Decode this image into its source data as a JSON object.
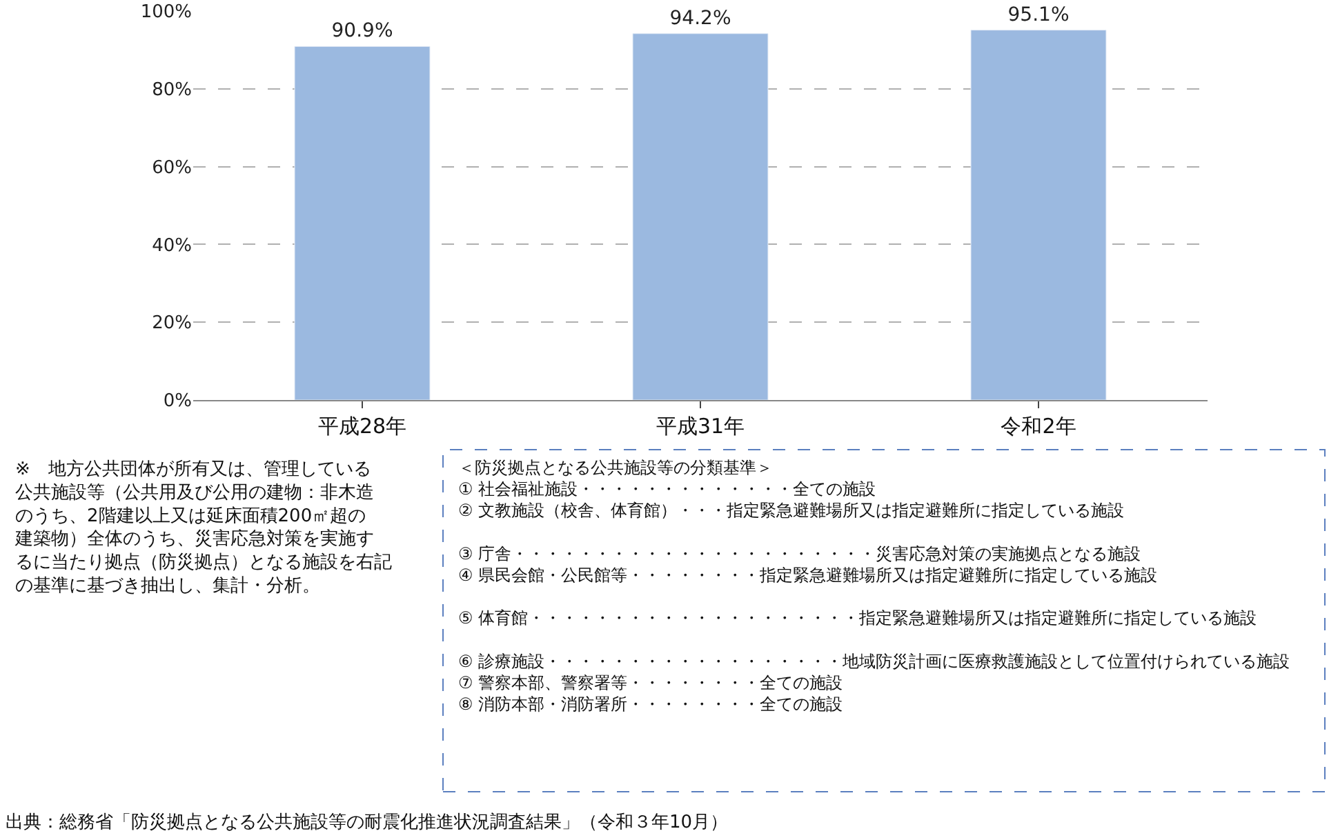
{
  "chart_data": {
    "type": "bar",
    "categories": [
      "平成28年",
      "平成31年",
      "令和2年"
    ],
    "values": [
      90.9,
      94.2,
      95.1
    ],
    "value_labels": [
      "90.9%",
      "94.2%",
      "95.1%"
    ],
    "color": "#9bb9e0",
    "ylim": [
      0,
      100
    ],
    "yticks": [
      {
        "value": 0,
        "label": "0%"
      },
      {
        "value": 20,
        "label": "20%"
      },
      {
        "value": 40,
        "label": "40%"
      },
      {
        "value": 60,
        "label": "60%"
      },
      {
        "value": 80,
        "label": "80%"
      },
      {
        "value": 100,
        "label": "100%"
      }
    ],
    "grid": "y",
    "annotations": [
      "※　地方公共団体が所有又は、管理している公共施設等（公共用及び公用の建物：非木造のうち、2階建以上又は延床面積200㎡超の建築物）全体のうち、災害応急対策を実施するに当たり拠点（防災拠点）となる施設を右記の基準に基づき抽出し、集計・分析。",
      "＜防災拠点となる公共施設等の分類基準＞\n① 社会福祉施設・・・・・・・・・・・・・全ての施設\n② 文教施設（校舎、体育館）・・・指定緊急避難場所又は指定避難所に指定している施設\n\n③ 庁舎・・・・・・・・・・・・・・・・・・・・・・災害応急対策の実施拠点となる施設\n④ 県民会館・公民館等・・・・・・・・指定緊急避難場所又は指定避難所に指定している施設\n\n⑤ 体育館・・・・・・・・・・・・・・・・・・・・指定緊急避難場所又は指定避難所に指定している施設\n\n⑥ 診療施設・・・・・・・・・・・・・・・・・・地域防災計画に医療救護施設として位置付けられている施設\n⑦ 警察本部、警察署等・・・・・・・・全ての施設\n⑧ 消防本部・消防署所・・・・・・・・全ての施設",
      "出典：総務省「防災拠点となる公共施設等の耐震化推進状況調査結果」（令和３年10月）"
    ]
  }
}
